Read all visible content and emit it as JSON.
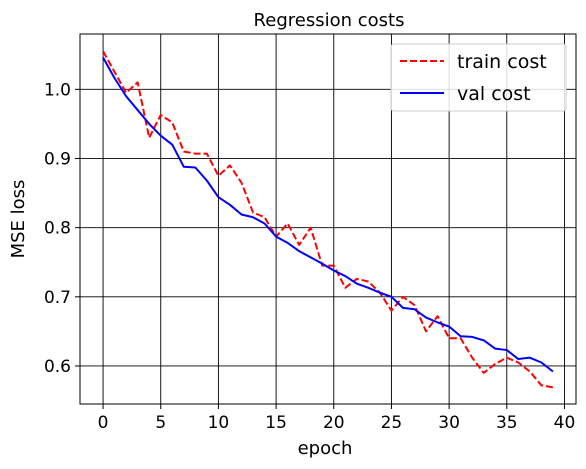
{
  "chart_data": {
    "type": "line",
    "title": "Regression costs",
    "xlabel": "epoch",
    "ylabel": "MSE loss",
    "xlim": [
      -2,
      41
    ],
    "ylim": [
      0.545,
      1.08
    ],
    "xticks": [
      0,
      5,
      10,
      15,
      20,
      25,
      30,
      35,
      40
    ],
    "yticks": [
      0.6,
      0.7,
      0.8,
      0.9,
      1.0
    ],
    "xtick_labels": [
      "0",
      "5",
      "10",
      "15",
      "20",
      "25",
      "30",
      "35",
      "40"
    ],
    "ytick_labels": [
      "0.6",
      "0.7",
      "0.8",
      "0.9",
      "1.0"
    ],
    "grid": true,
    "legend_position": "top-right",
    "x": [
      0,
      1,
      2,
      3,
      4,
      5,
      6,
      7,
      8,
      9,
      10,
      11,
      12,
      13,
      14,
      15,
      16,
      17,
      18,
      19,
      20,
      21,
      22,
      23,
      24,
      25,
      26,
      27,
      28,
      29,
      30,
      31,
      32,
      33,
      34,
      35,
      36,
      37,
      38,
      39
    ],
    "series": [
      {
        "name": "train cost",
        "color": "#ff0000",
        "style": "dashed",
        "values": [
          1.055,
          1.025,
          0.995,
          1.01,
          0.93,
          0.963,
          0.952,
          0.91,
          0.907,
          0.907,
          0.875,
          0.89,
          0.865,
          0.822,
          0.815,
          0.787,
          0.806,
          0.775,
          0.8,
          0.745,
          0.745,
          0.713,
          0.726,
          0.722,
          0.706,
          0.68,
          0.7,
          0.688,
          0.65,
          0.672,
          0.64,
          0.64,
          0.612,
          0.59,
          0.603,
          0.612,
          0.605,
          0.592,
          0.572,
          0.569
        ]
      },
      {
        "name": "val cost",
        "color": "#0000ff",
        "style": "solid",
        "values": [
          1.046,
          1.016,
          0.99,
          0.97,
          0.95,
          0.933,
          0.92,
          0.888,
          0.887,
          0.868,
          0.844,
          0.833,
          0.819,
          0.815,
          0.806,
          0.787,
          0.778,
          0.766,
          0.757,
          0.748,
          0.738,
          0.73,
          0.719,
          0.713,
          0.706,
          0.7,
          0.684,
          0.682,
          0.67,
          0.663,
          0.657,
          0.643,
          0.642,
          0.637,
          0.625,
          0.623,
          0.61,
          0.612,
          0.605,
          0.592
        ]
      }
    ]
  }
}
